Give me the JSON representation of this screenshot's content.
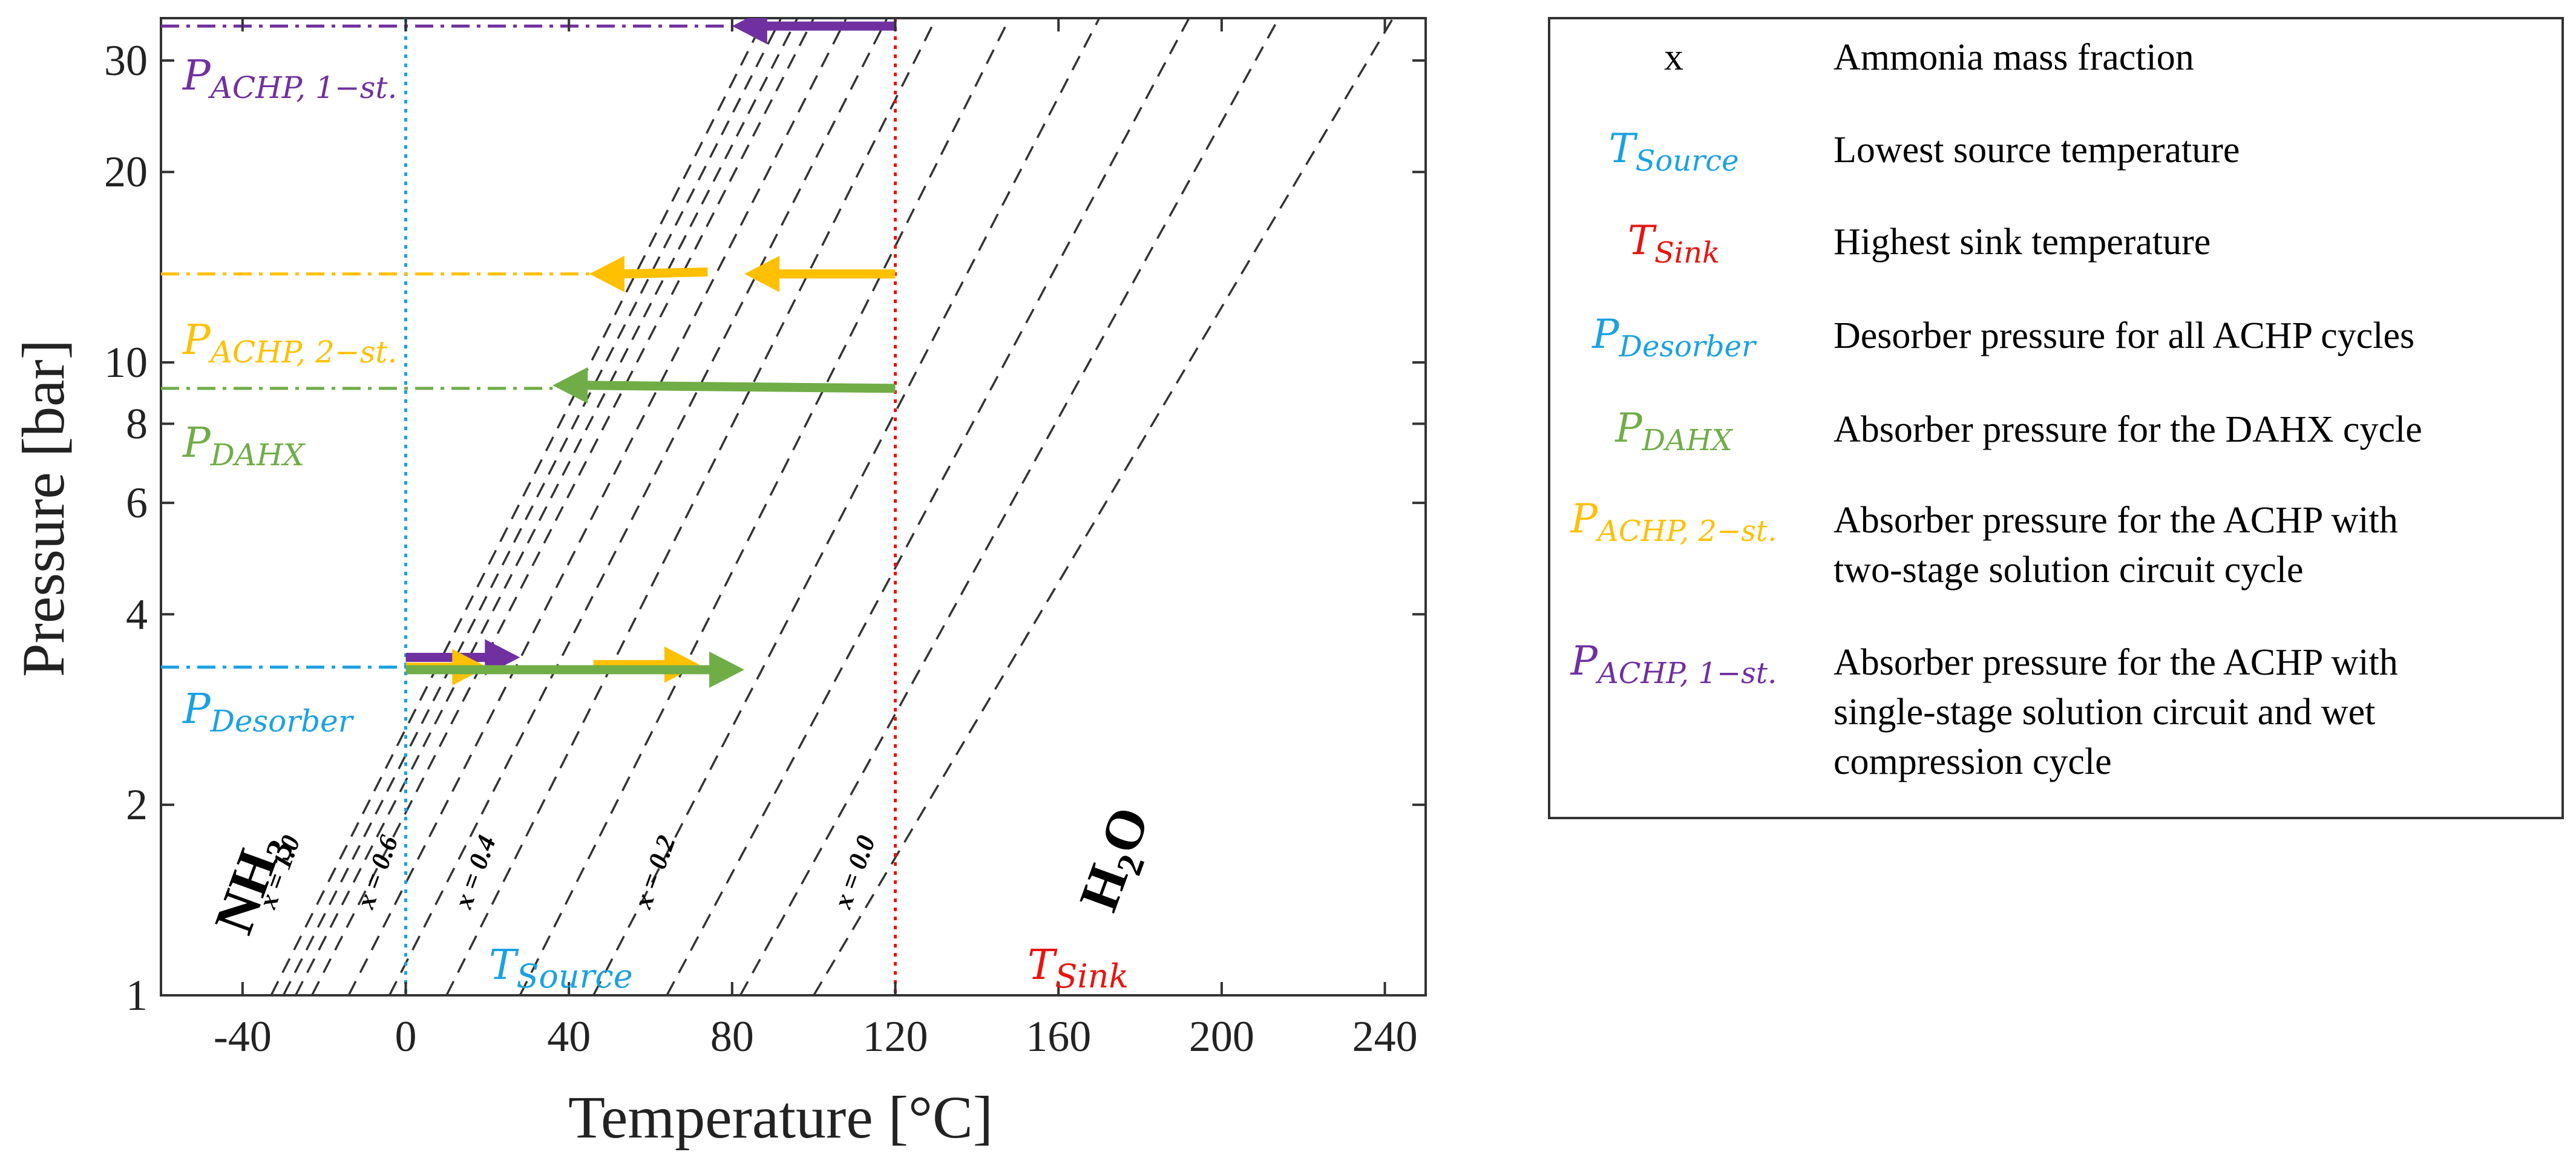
{
  "chart_data": {
    "type": "line",
    "xlabel": "Temperature [°C]",
    "ylabel": "Pressure [bar]",
    "xlim": [
      -60,
      250
    ],
    "ylim": [
      1,
      35
    ],
    "yscale": "log",
    "x_ticks": [
      -40,
      0,
      40,
      80,
      120,
      160,
      200,
      240
    ],
    "y_ticks": [
      1,
      2,
      4,
      6,
      8,
      10,
      20,
      30
    ],
    "isosteres": {
      "description": "Ammonia-water saturation lines (dashed) for ammonia mass fraction x = 1.0 ... 0.0",
      "t_at_1bar": [
        -33,
        -30,
        -27,
        -23,
        -14,
        -4,
        10,
        28,
        46,
        64,
        82,
        100
      ],
      "t_at_35bar": [
        88,
        92,
        96,
        100,
        108,
        118,
        130,
        148,
        170,
        192,
        214,
        242
      ],
      "labels": [
        {
          "text": "x = 1.0",
          "x": -29,
          "p": 1.55
        },
        {
          "text": "x = 0.6",
          "x": -5,
          "p": 1.55
        },
        {
          "text": "x = 0.4",
          "x": 19,
          "p": 1.55
        },
        {
          "text": "x = 0.2",
          "x": 63,
          "p": 1.55
        },
        {
          "text": "x = 0.0",
          "x": 112,
          "p": 1.55
        }
      ]
    },
    "reference_lines": {
      "T_source": {
        "value": 0,
        "color": "#1ba1e2"
      },
      "T_sink": {
        "value": 120,
        "color": "#e8140f"
      },
      "P_ACHP_1st": {
        "value": 34,
        "color": "#7030a0"
      },
      "P_ACHP_2st": {
        "value": 13.8,
        "color": "#ffc000"
      },
      "P_DAHX": {
        "value": 9.1,
        "color": "#70ad47"
      },
      "P_Desorber": {
        "value": 3.3,
        "color": "#1ba1e2"
      }
    },
    "arrows": [
      {
        "series": "ACHP 1-st.",
        "color": "#7030a0",
        "from": [
          120,
          34
        ],
        "to": [
          80,
          34
        ]
      },
      {
        "series": "ACHP 2-st.",
        "color": "#ffc000",
        "from": [
          120,
          13.8
        ],
        "to": [
          83,
          13.8
        ]
      },
      {
        "series": "ACHP 2-st.",
        "color": "#ffc000",
        "from": [
          74,
          13.9
        ],
        "to": [
          45,
          13.8
        ]
      },
      {
        "series": "DAHX",
        "color": "#70ad47",
        "from": [
          120,
          9.1
        ],
        "to": [
          36,
          9.2
        ]
      },
      {
        "series": "ACHP 1-st.",
        "color": "#7030a0",
        "from": [
          0,
          3.42
        ],
        "to": [
          28,
          3.42
        ]
      },
      {
        "series": "ACHP 2-st.",
        "color": "#ffc000",
        "from": [
          0,
          3.3
        ],
        "to": [
          20,
          3.3
        ]
      },
      {
        "series": "ACHP 2-st.",
        "color": "#ffc000",
        "from": [
          46,
          3.33
        ],
        "to": [
          72,
          3.33
        ]
      },
      {
        "series": "DAHX",
        "color": "#70ad47",
        "from": [
          0,
          3.27
        ],
        "to": [
          83,
          3.27
        ]
      }
    ],
    "annotations": {
      "nh3": "NH3",
      "h2o": "H2O",
      "t_source": "TSource",
      "t_sink": "TSink",
      "p_achp_1st": "PACHP, 1−st.",
      "p_achp_2st": "PACHP, 2−st.",
      "p_dahx": "PDAHX",
      "p_desorber": "PDesorber"
    }
  },
  "legend": {
    "rows": [
      {
        "symbol": "x",
        "sym_main": "x",
        "sym_sub": "",
        "sym_color": "#000000",
        "desc1": "Ammonia mass fraction",
        "desc2": "",
        "desc3": ""
      },
      {
        "symbol": "TSource",
        "sym_main": "T",
        "sym_sub": "Source",
        "sym_color": "#1ba1e2",
        "desc1": "Lowest source temperature",
        "desc2": "",
        "desc3": ""
      },
      {
        "symbol": "TSink",
        "sym_main": "T",
        "sym_sub": "Sink",
        "sym_color": "#e8140f",
        "desc1": "Highest sink temperature",
        "desc2": "",
        "desc3": ""
      },
      {
        "symbol": "PDesorber",
        "sym_main": "P",
        "sym_sub": "Desorber",
        "sym_color": "#1ba1e2",
        "desc1": "Desorber pressure for all ACHP cycles",
        "desc2": "",
        "desc3": ""
      },
      {
        "symbol": "PDAHX",
        "sym_main": "P",
        "sym_sub": "DAHX",
        "sym_color": "#70ad47",
        "desc1": "Absorber pressure for the DAHX cycle",
        "desc2": "",
        "desc3": ""
      },
      {
        "symbol": "PACHP, 2−st.",
        "sym_main": "P",
        "sym_sub": "ACHP, 2−st.",
        "sym_color": "#ffc000",
        "desc1": "Absorber pressure for the ACHP with",
        "desc2": "two-stage solution circuit cycle",
        "desc3": ""
      },
      {
        "symbol": "PACHP, 1−st.",
        "sym_main": "P",
        "sym_sub": "ACHP, 1−st.",
        "sym_color": "#7030a0",
        "desc1": "Absorber pressure for the ACHP with",
        "desc2": "single-stage solution circuit and wet",
        "desc3": "compression cycle"
      }
    ]
  }
}
